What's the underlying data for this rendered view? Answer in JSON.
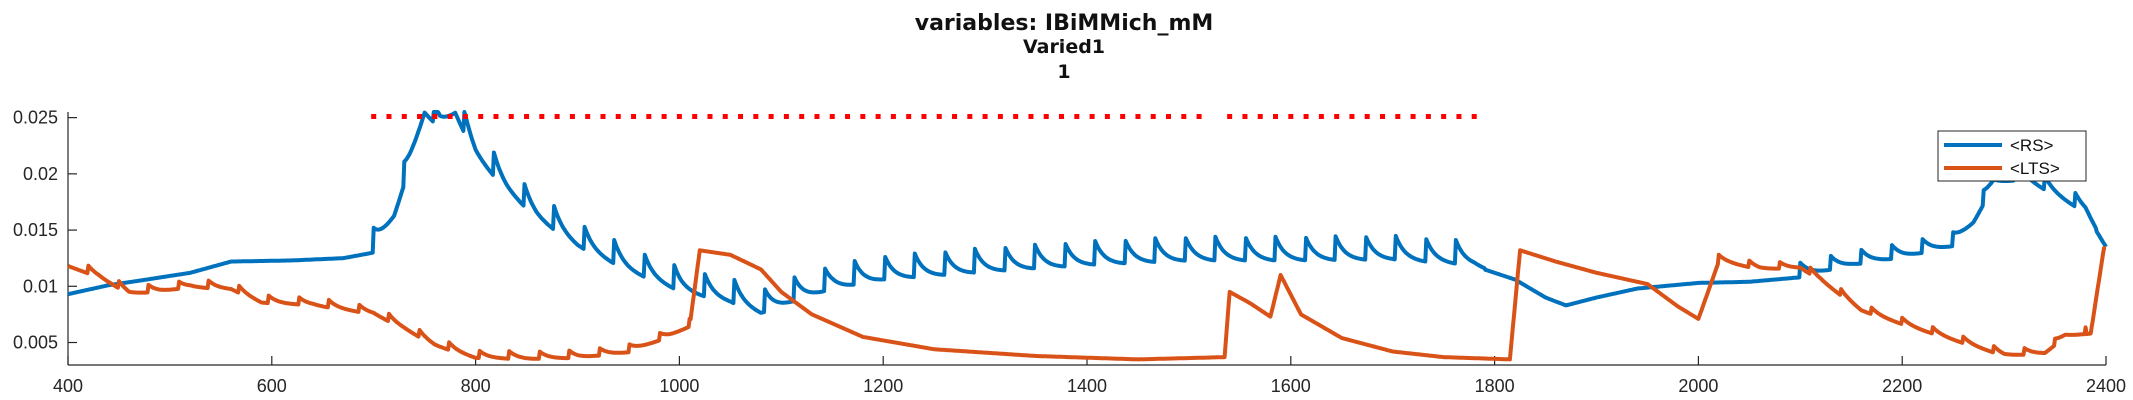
{
  "chart_data": {
    "type": "line",
    "title": "variables: IBiMMich_mM",
    "subtitle": "Varied1",
    "subtitle2": "1",
    "xlabel": "",
    "ylabel": "",
    "xlim": [
      400,
      2400
    ],
    "ylim": [
      0.003,
      0.0255
    ],
    "xticks": [
      400,
      600,
      800,
      1000,
      1200,
      1400,
      1600,
      1800,
      2000,
      2200,
      2400
    ],
    "yticks": [
      0.005,
      0.01,
      0.015,
      0.02,
      0.025
    ],
    "ytick_labels": [
      "0.005",
      "0.01",
      "0.015",
      "0.02",
      "0.025"
    ],
    "grid": false,
    "legend_position": "top-right",
    "markers": {
      "color": "#ff0000",
      "y": 0.0251,
      "x_start": 700,
      "x_end": 1790,
      "step": 15,
      "gaps": [
        [
          1510,
          1540
        ]
      ]
    },
    "series": [
      {
        "name": "<RS>",
        "color": "#0072bd",
        "keypoints": [
          [
            400,
            0.0093
          ],
          [
            440,
            0.0101
          ],
          [
            470,
            0.0105
          ],
          [
            520,
            0.0112
          ],
          [
            560,
            0.0122
          ],
          [
            620,
            0.0123
          ],
          [
            670,
            0.0125
          ],
          [
            700,
            0.013
          ],
          [
            720,
            0.016
          ],
          [
            735,
            0.0205
          ],
          [
            750,
            0.0252
          ],
          [
            765,
            0.024
          ],
          [
            780,
            0.0252
          ],
          [
            800,
            0.0215
          ],
          [
            830,
            0.0185
          ],
          [
            860,
            0.016
          ],
          [
            900,
            0.0135
          ],
          [
            950,
            0.0113
          ],
          [
            1000,
            0.0095
          ],
          [
            1050,
            0.0085
          ],
          [
            1080,
            0.0075
          ],
          [
            1110,
            0.0085
          ],
          [
            1150,
            0.0097
          ],
          [
            1200,
            0.0105
          ],
          [
            1300,
            0.0112
          ],
          [
            1400,
            0.0118
          ],
          [
            1500,
            0.0122
          ],
          [
            1600,
            0.0122
          ],
          [
            1700,
            0.0123
          ],
          [
            1780,
            0.0118
          ],
          [
            1820,
            0.0106
          ],
          [
            1850,
            0.009
          ],
          [
            1870,
            0.0083
          ],
          [
            1900,
            0.009
          ],
          [
            1940,
            0.0098
          ],
          [
            2000,
            0.0103
          ],
          [
            2050,
            0.0104
          ],
          [
            2100,
            0.0108
          ],
          [
            2150,
            0.0118
          ],
          [
            2200,
            0.0125
          ],
          [
            2250,
            0.0135
          ],
          [
            2270,
            0.0155
          ],
          [
            2290,
            0.019
          ],
          [
            2320,
            0.0195
          ],
          [
            2350,
            0.018
          ],
          [
            2380,
            0.0165
          ],
          [
            2400,
            0.0135
          ]
        ],
        "spikes": {
          "start": 700,
          "end": 1790,
          "period": 29.5,
          "amplitude": 0.0022,
          "decay": 0.32
        },
        "spikes_late": {
          "start": 2100,
          "end": 2390,
          "period": 30,
          "amplitude": 0.0013,
          "decay": 0.35
        }
      },
      {
        "name": "<LTS>",
        "color": "#d95319",
        "keypoints": [
          [
            400,
            0.0118
          ],
          [
            430,
            0.0108
          ],
          [
            460,
            0.0093
          ],
          [
            490,
            0.0095
          ],
          [
            520,
            0.0099
          ],
          [
            560,
            0.0097
          ],
          [
            590,
            0.0085
          ],
          [
            640,
            0.0083
          ],
          [
            700,
            0.0075
          ],
          [
            730,
            0.0062
          ],
          [
            760,
            0.0047
          ],
          [
            800,
            0.0036
          ],
          [
            850,
            0.0035
          ],
          [
            900,
            0.0036
          ],
          [
            950,
            0.0041
          ],
          [
            990,
            0.0055
          ],
          [
            1010,
            0.0064
          ],
          [
            1020,
            0.0132
          ],
          [
            1050,
            0.0128
          ],
          [
            1080,
            0.0115
          ],
          [
            1100,
            0.0095
          ],
          [
            1130,
            0.0075
          ],
          [
            1180,
            0.0055
          ],
          [
            1250,
            0.0044
          ],
          [
            1350,
            0.0038
          ],
          [
            1450,
            0.0035
          ],
          [
            1535,
            0.0037
          ],
          [
            1540,
            0.0095
          ],
          [
            1560,
            0.0085
          ],
          [
            1580,
            0.0073
          ],
          [
            1590,
            0.011
          ],
          [
            1610,
            0.0075
          ],
          [
            1650,
            0.0054
          ],
          [
            1700,
            0.0042
          ],
          [
            1750,
            0.0037
          ],
          [
            1815,
            0.0035
          ],
          [
            1825,
            0.0132
          ],
          [
            1860,
            0.0122
          ],
          [
            1900,
            0.0112
          ],
          [
            1950,
            0.0102
          ],
          [
            1980,
            0.0082
          ],
          [
            2000,
            0.0071
          ],
          [
            2020,
            0.0122
          ],
          [
            2060,
            0.0115
          ],
          [
            2100,
            0.0116
          ],
          [
            2120,
            0.0105
          ],
          [
            2160,
            0.0078
          ],
          [
            2200,
            0.0066
          ],
          [
            2250,
            0.0052
          ],
          [
            2300,
            0.0038
          ],
          [
            2340,
            0.004
          ],
          [
            2360,
            0.0055
          ],
          [
            2385,
            0.0058
          ],
          [
            2398,
            0.0134
          ]
        ],
        "spikes": {
          "start": 420,
          "end": 1010,
          "period": 29.5,
          "amplitude": 0.0007,
          "decay": 0.3
        },
        "spikes_late": {
          "start": 2020,
          "end": 2380,
          "period": 30,
          "amplitude": 0.0006,
          "decay": 0.3
        }
      }
    ]
  }
}
